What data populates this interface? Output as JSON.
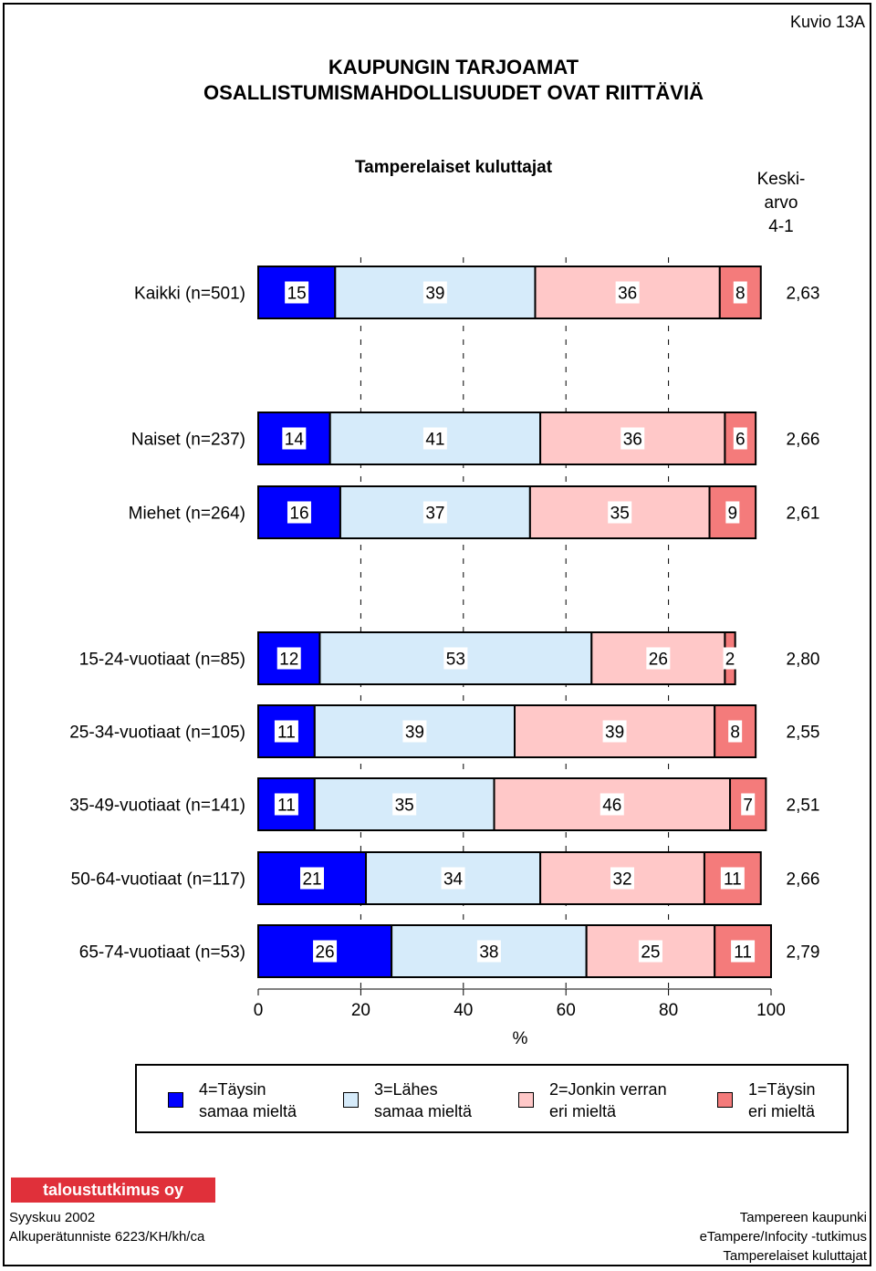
{
  "figure_label": "Kuvio 13A",
  "title_line1": "KAUPUNGIN TARJOAMAT",
  "title_line2": "OSALLISTUMISMAHDOLLISUUDET OVAT  RIITTÄVIÄ",
  "subtitle": "Tamperelaiset kuluttajat",
  "mean_header": [
    "Keski-",
    "arvo",
    "4-1"
  ],
  "colors": {
    "s4": "#0000ff",
    "s3": "#d6ebfa",
    "s2": "#ffc8c8",
    "s1": "#f47b7b"
  },
  "chart_data": {
    "type": "bar",
    "orientation": "horizontal",
    "stacked": true,
    "xlabel": "%",
    "xlim": [
      0,
      100
    ],
    "xticks": [
      "0",
      "20",
      "40",
      "60",
      "80",
      "100"
    ],
    "categories": [
      "Kaikki (n=501)",
      "Naiset (n=237)",
      "Miehet (n=264)",
      "15-24-vuotiaat (n=85)",
      "25-34-vuotiaat (n=105)",
      "35-49-vuotiaat (n=141)",
      "50-64-vuotiaat (n=117)",
      "65-74-vuotiaat (n=53)"
    ],
    "series": [
      {
        "name": "4=Täysin samaa mieltä",
        "values": [
          15,
          14,
          16,
          12,
          11,
          11,
          21,
          26
        ]
      },
      {
        "name": "3=Lähes samaa mieltä",
        "values": [
          39,
          41,
          37,
          53,
          39,
          35,
          34,
          38
        ]
      },
      {
        "name": "2=Jonkin verran eri mieltä",
        "values": [
          36,
          36,
          35,
          26,
          39,
          46,
          32,
          25
        ]
      },
      {
        "name": "1=Täysin eri mieltä",
        "values": [
          8,
          6,
          9,
          2,
          8,
          7,
          11,
          11
        ]
      }
    ],
    "means": [
      "2,63",
      "2,66",
      "2,61",
      "2,80",
      "2,55",
      "2,51",
      "2,66",
      "2,79"
    ],
    "grid": true,
    "legend_position": "bottom"
  },
  "legend": [
    {
      "line1": "4=Täysin",
      "line2": "samaa mieltä"
    },
    {
      "line1": "3=Lähes",
      "line2": "samaa mieltä"
    },
    {
      "line1": "2=Jonkin verran",
      "line2": "eri mieltä"
    },
    {
      "line1": "1=Täysin",
      "line2": "eri mieltä"
    }
  ],
  "logo_text": "taloustutkimus oy",
  "footer": {
    "date": "Syyskuu 2002",
    "code": "Alkuperätunniste 6223/KH/kh/ca",
    "org": "Tampereen kaupunki",
    "study": "eTampere/Infocity -tutkimus",
    "group": "Tamperelaiset kuluttajat"
  }
}
